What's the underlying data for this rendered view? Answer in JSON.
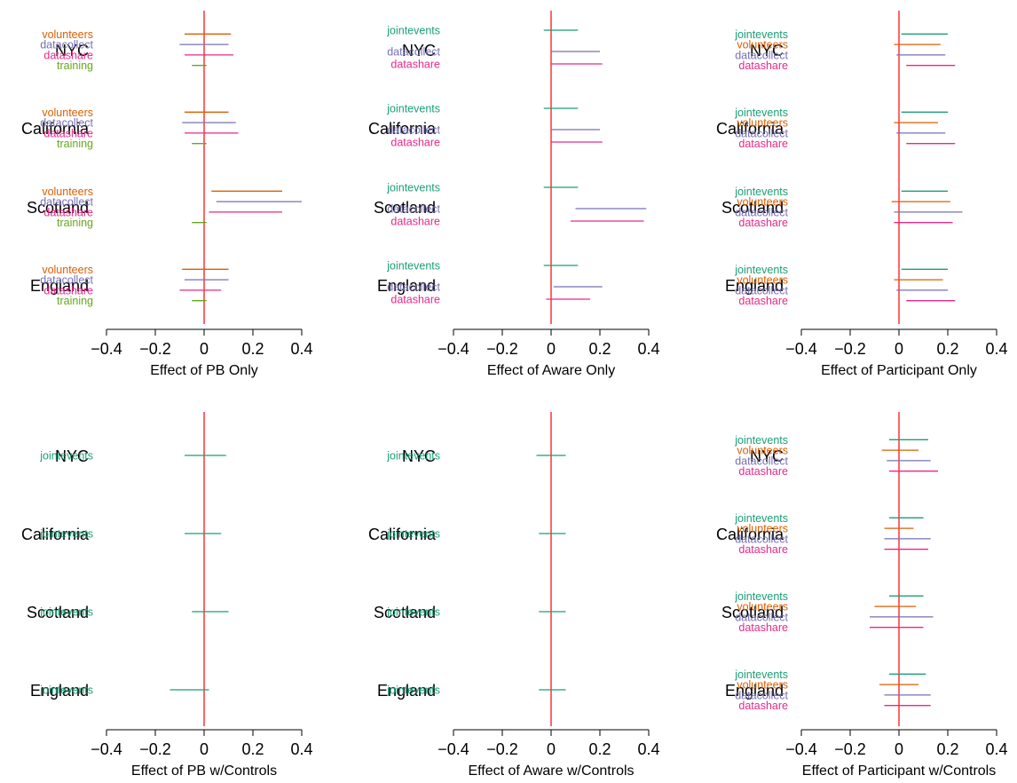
{
  "colors": {
    "jointevents": "#1b9e77",
    "volunteers": "#d95f02",
    "datacollect": "#7570b3",
    "datashare": "#e7298a",
    "training": "#66a61e",
    "zero_line": "#ff0000",
    "axis": "#000000"
  },
  "chart_data": [
    {
      "type": "forest",
      "xlabel": "Effect of PB Only",
      "xlim": [
        -0.4,
        0.4
      ],
      "ticks": [
        -0.4,
        -0.2,
        0,
        0.2,
        0.4
      ],
      "tick_labels": [
        "−0.4",
        "−0.2",
        "0",
        "0.2",
        "0.4"
      ],
      "groups": [
        {
          "name": "NYC",
          "estimates": [
            {
              "outcome": "volunteers",
              "lo": -0.08,
              "hi": 0.11
            },
            {
              "outcome": "datacollect",
              "lo": -0.1,
              "hi": 0.1
            },
            {
              "outcome": "datashare",
              "lo": -0.08,
              "hi": 0.12
            },
            {
              "outcome": "training",
              "lo": -0.05,
              "hi": 0.01
            }
          ]
        },
        {
          "name": "California",
          "estimates": [
            {
              "outcome": "volunteers",
              "lo": -0.08,
              "hi": 0.1
            },
            {
              "outcome": "datacollect",
              "lo": -0.09,
              "hi": 0.13
            },
            {
              "outcome": "datashare",
              "lo": -0.08,
              "hi": 0.14
            },
            {
              "outcome": "training",
              "lo": -0.05,
              "hi": 0.01
            }
          ]
        },
        {
          "name": "Scotland",
          "estimates": [
            {
              "outcome": "volunteers",
              "lo": 0.03,
              "hi": 0.32
            },
            {
              "outcome": "datacollect",
              "lo": 0.05,
              "hi": 0.4
            },
            {
              "outcome": "datashare",
              "lo": 0.02,
              "hi": 0.32
            },
            {
              "outcome": "training",
              "lo": -0.05,
              "hi": 0.01
            }
          ]
        },
        {
          "name": "England",
          "estimates": [
            {
              "outcome": "volunteers",
              "lo": -0.09,
              "hi": 0.1
            },
            {
              "outcome": "datacollect",
              "lo": -0.08,
              "hi": 0.1
            },
            {
              "outcome": "datashare",
              "lo": -0.1,
              "hi": 0.07
            },
            {
              "outcome": "training",
              "lo": -0.05,
              "hi": 0.01
            }
          ]
        }
      ]
    },
    {
      "type": "forest",
      "xlabel": "Effect of Aware Only",
      "xlim": [
        -0.4,
        0.4
      ],
      "ticks": [
        -0.4,
        -0.2,
        0,
        0.2,
        0.4
      ],
      "tick_labels": [
        "−0.4",
        "−0.2",
        "0",
        "0.2",
        "0.4"
      ],
      "groups": [
        {
          "name": "NYC",
          "estimates": [
            {
              "outcome": "jointevents",
              "lo": -0.03,
              "hi": 0.11
            },
            {
              "outcome": "datacollect",
              "lo": 0.0,
              "hi": 0.2
            },
            {
              "outcome": "datashare",
              "lo": 0.0,
              "hi": 0.21
            }
          ]
        },
        {
          "name": "California",
          "estimates": [
            {
              "outcome": "jointevents",
              "lo": -0.03,
              "hi": 0.11
            },
            {
              "outcome": "datacollect",
              "lo": 0.0,
              "hi": 0.2
            },
            {
              "outcome": "datashare",
              "lo": 0.0,
              "hi": 0.21
            }
          ]
        },
        {
          "name": "Scotland",
          "estimates": [
            {
              "outcome": "jointevents",
              "lo": -0.03,
              "hi": 0.11
            },
            {
              "outcome": "datacollect",
              "lo": 0.1,
              "hi": 0.39
            },
            {
              "outcome": "datashare",
              "lo": 0.08,
              "hi": 0.38
            }
          ]
        },
        {
          "name": "England",
          "estimates": [
            {
              "outcome": "jointevents",
              "lo": -0.03,
              "hi": 0.11
            },
            {
              "outcome": "datacollect",
              "lo": 0.01,
              "hi": 0.21
            },
            {
              "outcome": "datashare",
              "lo": -0.02,
              "hi": 0.16
            }
          ]
        }
      ]
    },
    {
      "type": "forest",
      "xlabel": "Effect of Participant Only",
      "xlim": [
        -0.4,
        0.4
      ],
      "ticks": [
        -0.4,
        -0.2,
        0,
        0.2,
        0.4
      ],
      "tick_labels": [
        "−0.4",
        "−0.2",
        "0",
        "0.2",
        "0.4"
      ],
      "groups": [
        {
          "name": "NYC",
          "estimates": [
            {
              "outcome": "jointevents",
              "lo": 0.01,
              "hi": 0.2
            },
            {
              "outcome": "volunteers",
              "lo": -0.02,
              "hi": 0.17
            },
            {
              "outcome": "datacollect",
              "lo": -0.01,
              "hi": 0.19
            },
            {
              "outcome": "datashare",
              "lo": 0.03,
              "hi": 0.23
            }
          ]
        },
        {
          "name": "California",
          "estimates": [
            {
              "outcome": "jointevents",
              "lo": 0.01,
              "hi": 0.2
            },
            {
              "outcome": "volunteers",
              "lo": -0.02,
              "hi": 0.16
            },
            {
              "outcome": "datacollect",
              "lo": -0.01,
              "hi": 0.19
            },
            {
              "outcome": "datashare",
              "lo": 0.03,
              "hi": 0.23
            }
          ]
        },
        {
          "name": "Scotland",
          "estimates": [
            {
              "outcome": "jointevents",
              "lo": 0.01,
              "hi": 0.2
            },
            {
              "outcome": "volunteers",
              "lo": -0.03,
              "hi": 0.21
            },
            {
              "outcome": "datacollect",
              "lo": -0.02,
              "hi": 0.26
            },
            {
              "outcome": "datashare",
              "lo": -0.02,
              "hi": 0.22
            }
          ]
        },
        {
          "name": "England",
          "estimates": [
            {
              "outcome": "jointevents",
              "lo": 0.01,
              "hi": 0.2
            },
            {
              "outcome": "volunteers",
              "lo": -0.02,
              "hi": 0.18
            },
            {
              "outcome": "datacollect",
              "lo": -0.01,
              "hi": 0.2
            },
            {
              "outcome": "datashare",
              "lo": 0.03,
              "hi": 0.23
            }
          ]
        }
      ]
    },
    {
      "type": "forest",
      "xlabel": "Effect of PB w/Controls",
      "xlim": [
        -0.4,
        0.4
      ],
      "ticks": [
        -0.4,
        -0.2,
        0,
        0.2,
        0.4
      ],
      "tick_labels": [
        "−0.4",
        "−0.2",
        "0",
        "0.2",
        "0.4"
      ],
      "groups": [
        {
          "name": "NYC",
          "estimates": [
            {
              "outcome": "jointevents",
              "lo": -0.08,
              "hi": 0.09
            }
          ]
        },
        {
          "name": "California",
          "estimates": [
            {
              "outcome": "jointevents",
              "lo": -0.08,
              "hi": 0.07
            }
          ]
        },
        {
          "name": "Scotland",
          "estimates": [
            {
              "outcome": "jointevents",
              "lo": -0.05,
              "hi": 0.1
            }
          ]
        },
        {
          "name": "England",
          "estimates": [
            {
              "outcome": "jointevents",
              "lo": -0.14,
              "hi": 0.02
            }
          ]
        }
      ]
    },
    {
      "type": "forest",
      "xlabel": "Effect of Aware w/Controls",
      "xlim": [
        -0.4,
        0.4
      ],
      "ticks": [
        -0.4,
        -0.2,
        0,
        0.2,
        0.4
      ],
      "tick_labels": [
        "−0.4",
        "−0.2",
        "0",
        "0.2",
        "0.4"
      ],
      "groups": [
        {
          "name": "NYC",
          "estimates": [
            {
              "outcome": "jointevents",
              "lo": -0.06,
              "hi": 0.06
            }
          ]
        },
        {
          "name": "California",
          "estimates": [
            {
              "outcome": "jointevents",
              "lo": -0.05,
              "hi": 0.06
            }
          ]
        },
        {
          "name": "Scotland",
          "estimates": [
            {
              "outcome": "jointevents",
              "lo": -0.05,
              "hi": 0.06
            }
          ]
        },
        {
          "name": "England",
          "estimates": [
            {
              "outcome": "jointevents",
              "lo": -0.05,
              "hi": 0.06
            }
          ]
        }
      ]
    },
    {
      "type": "forest",
      "xlabel": "Effect of Participant w/Controls",
      "xlim": [
        -0.4,
        0.4
      ],
      "ticks": [
        -0.4,
        -0.2,
        0,
        0.2,
        0.4
      ],
      "tick_labels": [
        "−0.4",
        "−0.2",
        "0",
        "0.2",
        "0.4"
      ],
      "groups": [
        {
          "name": "NYC",
          "estimates": [
            {
              "outcome": "jointevents",
              "lo": -0.04,
              "hi": 0.12
            },
            {
              "outcome": "volunteers",
              "lo": -0.07,
              "hi": 0.08
            },
            {
              "outcome": "datacollect",
              "lo": -0.05,
              "hi": 0.13
            },
            {
              "outcome": "datashare",
              "lo": -0.04,
              "hi": 0.16
            }
          ]
        },
        {
          "name": "California",
          "estimates": [
            {
              "outcome": "jointevents",
              "lo": -0.04,
              "hi": 0.1
            },
            {
              "outcome": "volunteers",
              "lo": -0.06,
              "hi": 0.06
            },
            {
              "outcome": "datacollect",
              "lo": -0.06,
              "hi": 0.13
            },
            {
              "outcome": "datashare",
              "lo": -0.06,
              "hi": 0.12
            }
          ]
        },
        {
          "name": "Scotland",
          "estimates": [
            {
              "outcome": "jointevents",
              "lo": -0.04,
              "hi": 0.1
            },
            {
              "outcome": "volunteers",
              "lo": -0.1,
              "hi": 0.07
            },
            {
              "outcome": "datacollect",
              "lo": -0.12,
              "hi": 0.14
            },
            {
              "outcome": "datashare",
              "lo": -0.12,
              "hi": 0.1
            }
          ]
        },
        {
          "name": "England",
          "estimates": [
            {
              "outcome": "jointevents",
              "lo": -0.04,
              "hi": 0.11
            },
            {
              "outcome": "volunteers",
              "lo": -0.08,
              "hi": 0.08
            },
            {
              "outcome": "datacollect",
              "lo": -0.06,
              "hi": 0.13
            },
            {
              "outcome": "datashare",
              "lo": -0.06,
              "hi": 0.13
            }
          ]
        }
      ]
    }
  ]
}
